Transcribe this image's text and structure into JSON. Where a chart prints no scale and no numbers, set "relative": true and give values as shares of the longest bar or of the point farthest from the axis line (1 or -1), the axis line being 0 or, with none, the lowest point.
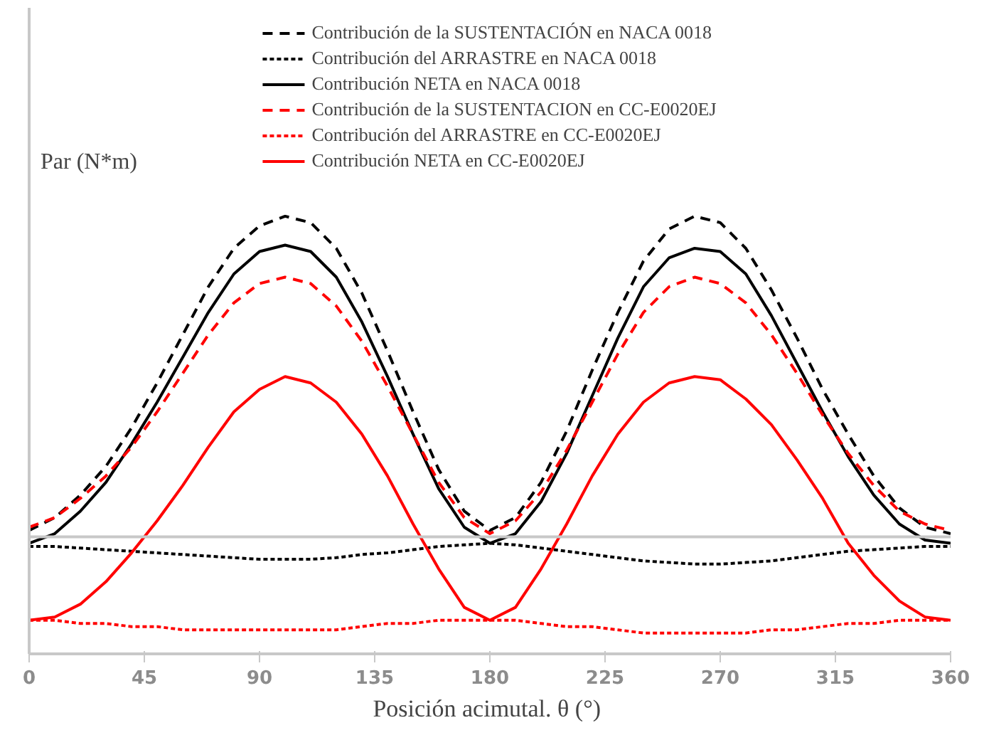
{
  "chart_data": {
    "type": "line",
    "relative": true,
    "xlabel": "Posición acimutal.  θ (°)",
    "ylabel": "Par (N*m)",
    "x": [
      0,
      10,
      20,
      30,
      40,
      50,
      60,
      70,
      80,
      90,
      100,
      110,
      120,
      130,
      140,
      150,
      160,
      170,
      180,
      190,
      200,
      210,
      220,
      230,
      240,
      250,
      260,
      270,
      280,
      290,
      300,
      310,
      320,
      330,
      340,
      350,
      360
    ],
    "xlim": [
      0,
      360
    ],
    "xticks": [
      0,
      45,
      90,
      135,
      180,
      225,
      270,
      315,
      360
    ],
    "grid": false,
    "legend": "top",
    "marker": "none",
    "series": [
      {
        "name": "Contribución de la SUSTENTACIÓN en NACA 0018",
        "color": "#000000",
        "line_style": "dashed",
        "values": [
          0.02,
          0.06,
          0.13,
          0.22,
          0.34,
          0.48,
          0.63,
          0.78,
          0.9,
          0.97,
          1.0,
          0.98,
          0.9,
          0.76,
          0.58,
          0.39,
          0.21,
          0.08,
          0.02,
          0.06,
          0.17,
          0.33,
          0.52,
          0.7,
          0.86,
          0.96,
          1.0,
          0.98,
          0.9,
          0.77,
          0.62,
          0.46,
          0.32,
          0.19,
          0.09,
          0.03,
          0.01
        ]
      },
      {
        "name": "Contribución del ARRASTRE en NACA 0018",
        "color": "#000000",
        "line_style": "dotted",
        "values": [
          -0.03,
          -0.03,
          -0.035,
          -0.04,
          -0.045,
          -0.05,
          -0.055,
          -0.06,
          -0.065,
          -0.07,
          -0.07,
          -0.07,
          -0.065,
          -0.055,
          -0.05,
          -0.04,
          -0.03,
          -0.025,
          -0.02,
          -0.025,
          -0.035,
          -0.045,
          -0.055,
          -0.065,
          -0.075,
          -0.08,
          -0.085,
          -0.085,
          -0.08,
          -0.075,
          -0.065,
          -0.055,
          -0.045,
          -0.04,
          -0.035,
          -0.03,
          -0.03
        ]
      },
      {
        "name": "Contribución NETA en NACA 0018",
        "color": "#000000",
        "line_style": "solid",
        "values": [
          -0.02,
          0.01,
          0.08,
          0.17,
          0.29,
          0.42,
          0.56,
          0.7,
          0.82,
          0.89,
          0.91,
          0.89,
          0.81,
          0.67,
          0.5,
          0.32,
          0.15,
          0.03,
          -0.02,
          0.01,
          0.11,
          0.26,
          0.44,
          0.62,
          0.78,
          0.87,
          0.9,
          0.89,
          0.82,
          0.69,
          0.54,
          0.39,
          0.25,
          0.13,
          0.04,
          -0.01,
          -0.02
        ]
      },
      {
        "name": "Contribución de la SUSTENTACION en CC-E0020EJ",
        "color": "#ff0000",
        "line_style": "dashed",
        "values": [
          0.03,
          0.06,
          0.12,
          0.19,
          0.28,
          0.39,
          0.51,
          0.63,
          0.73,
          0.79,
          0.81,
          0.79,
          0.72,
          0.61,
          0.47,
          0.32,
          0.17,
          0.06,
          0.01,
          0.05,
          0.14,
          0.27,
          0.42,
          0.57,
          0.7,
          0.78,
          0.81,
          0.79,
          0.73,
          0.63,
          0.51,
          0.38,
          0.26,
          0.16,
          0.08,
          0.04,
          0.02
        ]
      },
      {
        "name": "Contribución del ARRASTRE en CC-E0020EJ",
        "color": "#ff0000",
        "line_style": "dotted",
        "values": [
          -0.26,
          -0.26,
          -0.27,
          -0.27,
          -0.28,
          -0.28,
          -0.29,
          -0.29,
          -0.29,
          -0.29,
          -0.29,
          -0.29,
          -0.29,
          -0.28,
          -0.27,
          -0.27,
          -0.26,
          -0.26,
          -0.26,
          -0.26,
          -0.27,
          -0.28,
          -0.28,
          -0.29,
          -0.3,
          -0.3,
          -0.3,
          -0.3,
          -0.3,
          -0.29,
          -0.29,
          -0.28,
          -0.27,
          -0.27,
          -0.26,
          -0.26,
          -0.26
        ]
      },
      {
        "name": "Contribución NETA en CC-E0020EJ",
        "color": "#ff0000",
        "line_style": "solid",
        "values": [
          -0.26,
          -0.25,
          -0.21,
          -0.14,
          -0.05,
          0.05,
          0.16,
          0.28,
          0.39,
          0.46,
          0.5,
          0.48,
          0.42,
          0.32,
          0.19,
          0.04,
          -0.1,
          -0.22,
          -0.26,
          -0.22,
          -0.1,
          0.04,
          0.19,
          0.32,
          0.42,
          0.48,
          0.5,
          0.49,
          0.43,
          0.35,
          0.24,
          0.12,
          -0.02,
          -0.12,
          -0.2,
          -0.25,
          -0.26
        ]
      }
    ]
  }
}
